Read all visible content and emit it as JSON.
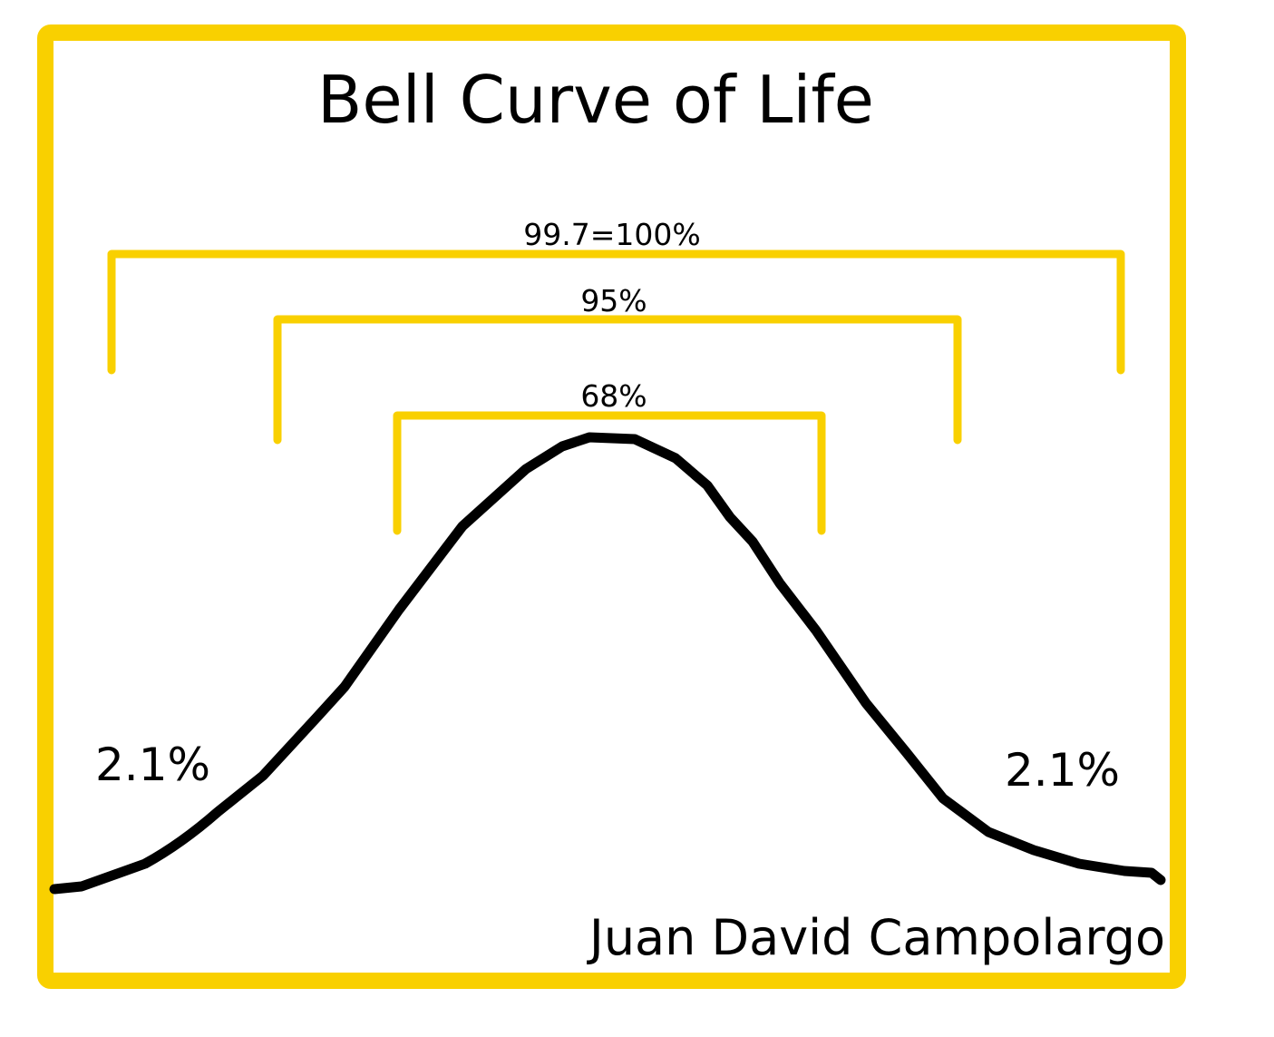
{
  "title": "Bell Curve of Life",
  "brackets": {
    "outer": "99.7=100%",
    "middle": "95%",
    "inner": "68%"
  },
  "tails": {
    "left": "2.1%",
    "right": "2.1%"
  },
  "author": "Juan David Campolargo",
  "colors": {
    "frame": "#F9D000",
    "curve": "#000000"
  }
}
